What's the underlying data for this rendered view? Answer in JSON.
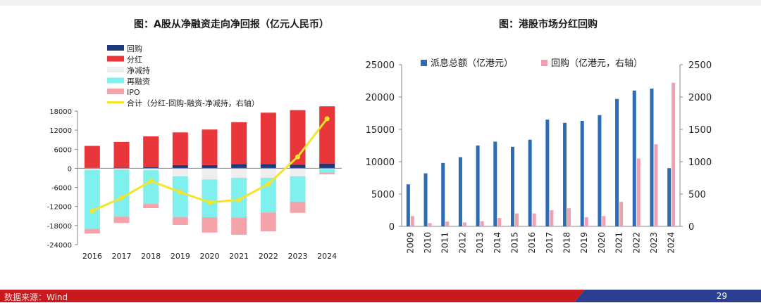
{
  "footer": {
    "source": "数据来源：Wind",
    "page": "29"
  },
  "colors": {
    "footer_red": "#c8191e",
    "footer_blue": "#2a3f8f"
  },
  "chart_data": [
    {
      "type": "bar",
      "stacked": true,
      "title": "图：A股从净融资走向净回报（亿元人民币）",
      "categories": [
        "2016",
        "2017",
        "2018",
        "2019",
        "2020",
        "2021",
        "2022",
        "2023",
        "2024"
      ],
      "ylim": [
        -24000,
        18000
      ],
      "yticks": [
        18000,
        12000,
        6000,
        0,
        -6000,
        -12000,
        -18000,
        -24000
      ],
      "legend_position": "top-left",
      "series": [
        {
          "name": "回购",
          "color": "#1f3a7a",
          "values": [
            150,
            200,
            450,
            1000,
            1000,
            1300,
            1300,
            1100,
            1500
          ]
        },
        {
          "name": "分红",
          "color": "#e8363b",
          "values": [
            6900,
            8100,
            9600,
            10300,
            11200,
            13200,
            16200,
            17200,
            18000
          ]
        },
        {
          "name": "净减持",
          "color": "#eeeeee",
          "values": [
            -500,
            -400,
            -600,
            -2500,
            -3500,
            -3000,
            -3000,
            -2500,
            -200
          ]
        },
        {
          "name": "再融资",
          "color": "#7ff0ee",
          "values": [
            -18500,
            -14800,
            -10600,
            -12800,
            -11900,
            -12500,
            -10900,
            -8000,
            -1100
          ]
        },
        {
          "name": "IPO",
          "color": "#f4a3ab",
          "values": [
            -1500,
            -2000,
            -1300,
            -2500,
            -4800,
            -5400,
            -5900,
            -3500,
            -600
          ]
        }
      ],
      "line": {
        "name": "合计（分红-回购-融资-净减持，右轴）",
        "color": "#f5e42c",
        "values": [
          -13400,
          -9300,
          -4000,
          -7500,
          -10700,
          -9900,
          -4900,
          3600,
          15600
        ]
      }
    },
    {
      "type": "bar",
      "title": "图：港股市场分红回购",
      "categories": [
        "2009",
        "2010",
        "2011",
        "2012",
        "2013",
        "2014",
        "2015",
        "2016",
        "2017",
        "2018",
        "2019",
        "2020",
        "2021",
        "2022",
        "2023",
        "2024"
      ],
      "ylim": [
        0,
        25000
      ],
      "yticks": [
        0,
        5000,
        10000,
        15000,
        20000,
        25000
      ],
      "y2lim": [
        0,
        2500
      ],
      "y2ticks": [
        0,
        500,
        1000,
        1500,
        2000,
        2500
      ],
      "legend_position": "top",
      "series": [
        {
          "name": "派息总额（亿港元）",
          "color": "#2e6bb5",
          "axis": "left",
          "values": [
            6500,
            8200,
            9800,
            10700,
            12500,
            13100,
            12300,
            13400,
            16500,
            16000,
            16300,
            17200,
            19700,
            21000,
            21300,
            9000
          ]
        },
        {
          "name": "回购（亿港元，右轴）",
          "color": "#f0a0b0",
          "axis": "right",
          "values": [
            160,
            50,
            75,
            60,
            80,
            130,
            200,
            200,
            250,
            280,
            140,
            160,
            380,
            1050,
            1270,
            2220
          ]
        }
      ]
    }
  ]
}
